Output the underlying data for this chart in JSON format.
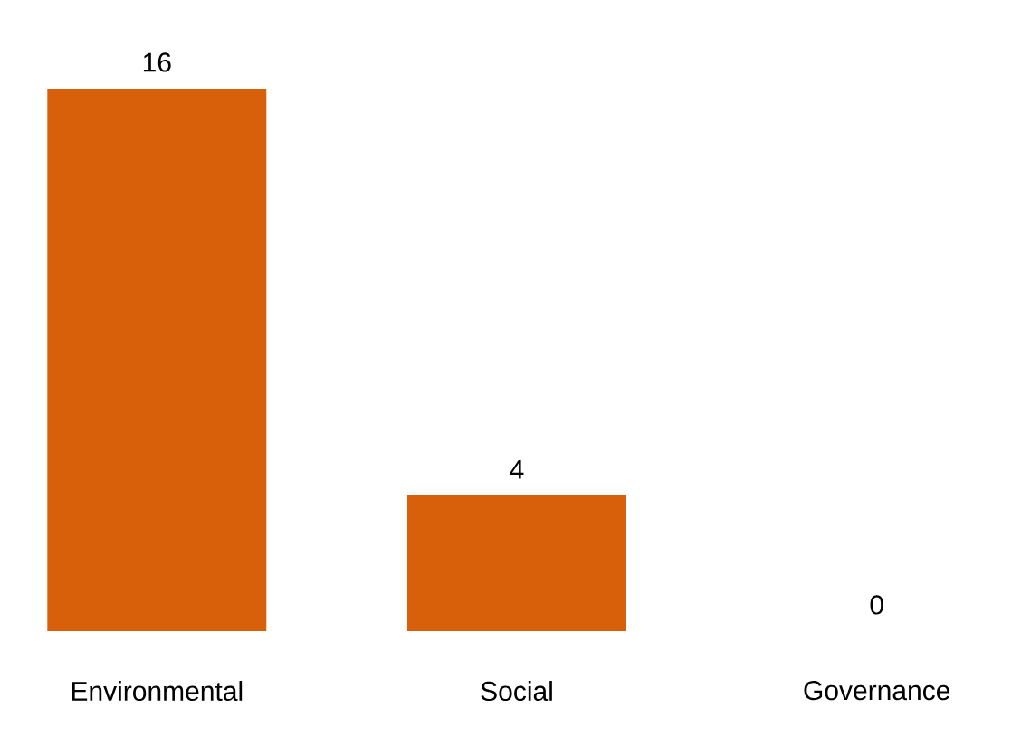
{
  "chart_data": {
    "type": "bar",
    "categories": [
      "Environmental",
      "Social",
      "Governance"
    ],
    "values": [
      16,
      4,
      0
    ],
    "color": "#d9600b",
    "data_labels": true
  }
}
